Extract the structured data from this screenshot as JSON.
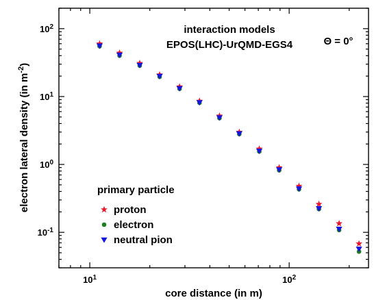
{
  "chart_data": {
    "type": "scatter",
    "xlabel": "core distance (in m)",
    "ylabel_main": "electron lateral density (in m",
    "ylabel_sup": "-2",
    "ylabel_close": ")",
    "xscale": "log",
    "yscale": "log",
    "xlim": [
      7,
      250
    ],
    "ylim": [
      0.03,
      200
    ],
    "x_ticks": [
      {
        "value": 10,
        "base": "10",
        "exp": "1"
      },
      {
        "value": 100,
        "base": "10",
        "exp": "2"
      }
    ],
    "y_ticks": [
      {
        "value": 0.1,
        "base": "10",
        "exp": "-1"
      },
      {
        "value": 1,
        "base": "10",
        "exp": "0"
      },
      {
        "value": 10,
        "base": "10",
        "exp": "1"
      },
      {
        "value": 100,
        "base": "10",
        "exp": "2"
      }
    ],
    "annotations": {
      "models_line1": "interaction models",
      "models_line2": "EPOS(LHC)-UrQMD-EGS4",
      "theta": "Θ = 0°"
    },
    "legend": {
      "title": "primary particle",
      "placement": "bottom-left"
    },
    "x": [
      11.2,
      14.1,
      17.8,
      22.4,
      28.2,
      35.5,
      44.7,
      56.2,
      70.8,
      89.1,
      112,
      141,
      178,
      224
    ],
    "series": [
      {
        "name": "proton",
        "marker": "star",
        "color": "#e8192c",
        "values": [
          60,
          44,
          31,
          21,
          14,
          8.6,
          5.2,
          3.0,
          1.7,
          0.9,
          0.48,
          0.26,
          0.135,
          0.068
        ]
      },
      {
        "name": "electron",
        "marker": "circle",
        "color": "#1e7d1e",
        "values": [
          55,
          40,
          28.5,
          19.5,
          13,
          8.1,
          4.8,
          2.8,
          1.55,
          0.82,
          0.43,
          0.22,
          0.108,
          0.052
        ]
      },
      {
        "name": "neutral pion",
        "marker": "triangle-down",
        "color": "#1515e0",
        "values": [
          56,
          41,
          29,
          20,
          13.2,
          8.2,
          4.9,
          2.85,
          1.58,
          0.84,
          0.44,
          0.225,
          0.112,
          0.057
        ]
      }
    ]
  }
}
